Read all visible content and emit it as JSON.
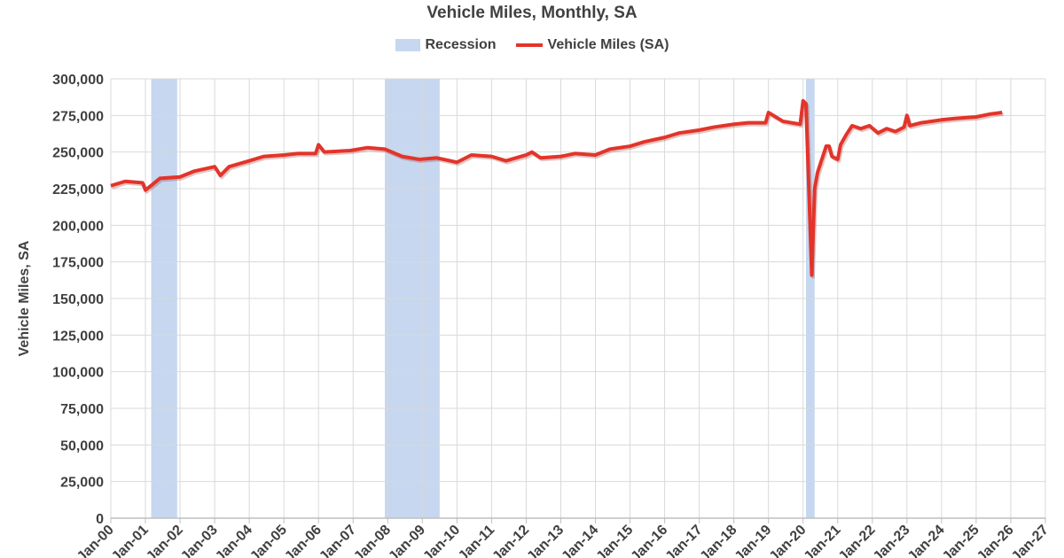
{
  "chart_data": {
    "type": "line",
    "title": "Vehicle Miles, Monthly, SA",
    "ylabel": "Vehicle Miles, SA",
    "xlabel": "",
    "ylim": [
      0,
      300000
    ],
    "yticks": [
      "0",
      "25,000",
      "50,000",
      "75,000",
      "100,000",
      "125,000",
      "150,000",
      "175,000",
      "200,000",
      "225,000",
      "250,000",
      "275,000",
      "300,000"
    ],
    "xlim": [
      "2000-01",
      "2027-01"
    ],
    "xticks": [
      "Jan-00",
      "Jan-01",
      "Jan-02",
      "Jan-03",
      "Jan-04",
      "Jan-05",
      "Jan-06",
      "Jan-07",
      "Jan-08",
      "Jan-09",
      "Jan-10",
      "Jan-11",
      "Jan-12",
      "Jan-13",
      "Jan-14",
      "Jan-15",
      "Jan-16",
      "Jan-17",
      "Jan-18",
      "Jan-19",
      "Jan-20",
      "Jan-21",
      "Jan-22",
      "Jan-23",
      "Jan-24",
      "Jan-25",
      "Jan-26",
      "Jan-27"
    ],
    "grid": true,
    "legend_position": "top",
    "legend": [
      "Recession",
      "Vehicle Miles (SA)"
    ],
    "colors": {
      "recession": "#c6d7ef",
      "series": "#e3342a",
      "grid": "#d9d9d9"
    },
    "recessions": [
      [
        "2001-03",
        "2001-11"
      ],
      [
        "2007-12",
        "2009-06"
      ],
      [
        "2020-02",
        "2020-04"
      ]
    ],
    "series": [
      {
        "name": "Vehicle Miles (SA)",
        "x": [
          "2000-01",
          "2000-06",
          "2000-12",
          "2001-01",
          "2001-06",
          "2002-01",
          "2002-06",
          "2003-01",
          "2003-03",
          "2003-06",
          "2004-01",
          "2004-06",
          "2005-01",
          "2005-06",
          "2005-12",
          "2006-01",
          "2006-03",
          "2006-12",
          "2007-06",
          "2007-12",
          "2008-06",
          "2008-12",
          "2009-06",
          "2010-01",
          "2010-06",
          "2011-01",
          "2011-06",
          "2012-01",
          "2012-03",
          "2012-06",
          "2013-01",
          "2013-06",
          "2014-01",
          "2014-06",
          "2015-01",
          "2015-06",
          "2016-01",
          "2016-06",
          "2017-01",
          "2017-06",
          "2018-01",
          "2018-06",
          "2018-12",
          "2019-01",
          "2019-06",
          "2019-12",
          "2020-01",
          "2020-02",
          "2020-04",
          "2020-05",
          "2020-06",
          "2020-09",
          "2020-10",
          "2020-11",
          "2021-01",
          "2021-02",
          "2021-04",
          "2021-06",
          "2021-09",
          "2021-12",
          "2022-03",
          "2022-06",
          "2022-09",
          "2022-12",
          "2023-01",
          "2023-02",
          "2023-06",
          "2024-01",
          "2024-06",
          "2025-01",
          "2025-06",
          "2025-10"
        ],
        "values": [
          227000,
          230000,
          229000,
          224000,
          232000,
          233000,
          237000,
          240000,
          234000,
          240000,
          244000,
          247000,
          248000,
          249000,
          249000,
          255000,
          250000,
          251000,
          253000,
          252000,
          247000,
          245000,
          246000,
          243000,
          248000,
          247000,
          244000,
          248000,
          250000,
          246000,
          247000,
          249000,
          248000,
          252000,
          254000,
          257000,
          260000,
          263000,
          265000,
          267000,
          269000,
          270000,
          270000,
          277000,
          271000,
          269000,
          285000,
          283000,
          166000,
          225000,
          236000,
          254000,
          254000,
          247000,
          245000,
          255000,
          262000,
          268000,
          266000,
          268000,
          263000,
          266000,
          264000,
          267000,
          275000,
          268000,
          270000,
          272000,
          273000,
          274000,
          276000,
          277000
        ]
      }
    ]
  }
}
